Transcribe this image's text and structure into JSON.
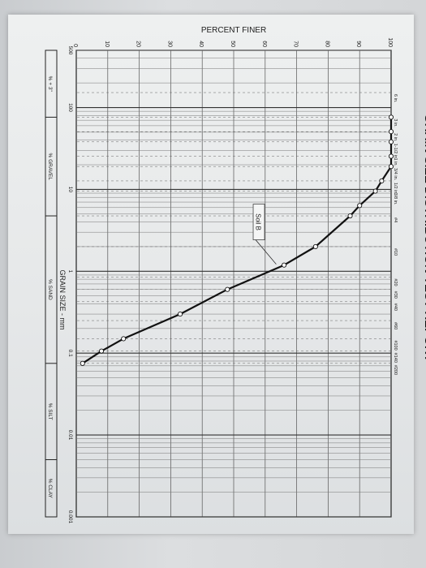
{
  "report": {
    "title": "GRAIN SIZE DISTRIBUTION TEST REPORT"
  },
  "chart_data": {
    "type": "line",
    "title": "GRAIN SIZE DISTRIBUTION TEST REPORT",
    "xlabel": "GRAIN SIZE - mm",
    "ylabel": "PERCENT FINER",
    "x_scale": "log",
    "x_direction": "decreasing",
    "xlim": [
      500,
      0.001
    ],
    "ylim": [
      0,
      100
    ],
    "x_ticks": [
      "500",
      "100",
      "10",
      "1",
      "0.1",
      "0.01",
      "0.001"
    ],
    "y_ticks": [
      "100",
      "90",
      "80",
      "70",
      "60",
      "50",
      "40",
      "30",
      "20",
      "10",
      "0"
    ],
    "sieves": [
      {
        "label": "6 in.",
        "size_mm": 152.4
      },
      {
        "label": "3 in.",
        "size_mm": 76.2
      },
      {
        "label": "2 in.",
        "size_mm": 50.8
      },
      {
        "label": "1-1/2 in.",
        "size_mm": 38.1
      },
      {
        "label": "1 in.",
        "size_mm": 25.4
      },
      {
        "label": "3/4 in.",
        "size_mm": 19.05
      },
      {
        "label": "1/2 in.",
        "size_mm": 12.7
      },
      {
        "label": "3/8 in.",
        "size_mm": 9.525
      },
      {
        "label": "#4",
        "size_mm": 4.75
      },
      {
        "label": "#10",
        "size_mm": 2.0
      },
      {
        "label": "#20",
        "size_mm": 0.85
      },
      {
        "label": "#30",
        "size_mm": 0.6
      },
      {
        "label": "#40",
        "size_mm": 0.425
      },
      {
        "label": "#60",
        "size_mm": 0.25
      },
      {
        "label": "#100",
        "size_mm": 0.15
      },
      {
        "label": "#140",
        "size_mm": 0.106
      },
      {
        "label": "#200",
        "size_mm": 0.075
      }
    ],
    "series": [
      {
        "name": "Soil B",
        "points": [
          {
            "x": 76.2,
            "y": 100
          },
          {
            "x": 50.8,
            "y": 100
          },
          {
            "x": 38.1,
            "y": 100
          },
          {
            "x": 25.4,
            "y": 100
          },
          {
            "x": 19.05,
            "y": 100
          },
          {
            "x": 12.7,
            "y": 97
          },
          {
            "x": 9.525,
            "y": 95
          },
          {
            "x": 6.35,
            "y": 90
          },
          {
            "x": 4.75,
            "y": 87
          },
          {
            "x": 2.0,
            "y": 76
          },
          {
            "x": 1.19,
            "y": 66
          },
          {
            "x": 0.6,
            "y": 48
          },
          {
            "x": 0.3,
            "y": 33
          },
          {
            "x": 0.15,
            "y": 15
          },
          {
            "x": 0.106,
            "y": 8
          },
          {
            "x": 0.075,
            "y": 2
          }
        ]
      }
    ],
    "annotations": [
      {
        "text": "Soil B"
      }
    ],
    "grid": true,
    "legend": "none"
  },
  "table": {
    "headers": [
      "% + 3\"",
      "% GRAVEL",
      "% SAND",
      "% SILT",
      "% CLAY"
    ]
  }
}
